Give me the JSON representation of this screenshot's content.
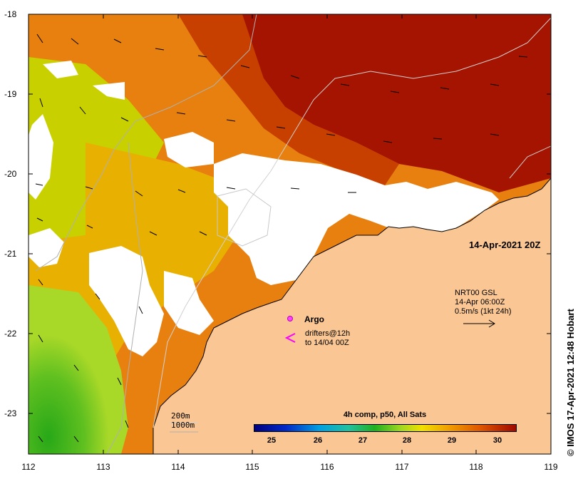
{
  "map": {
    "lat_ticks": [
      "-18",
      "-19",
      "-20",
      "-21",
      "-22",
      "-23"
    ],
    "lon_ticks": [
      "112",
      "113",
      "114",
      "115",
      "116",
      "117",
      "118",
      "119"
    ],
    "lat_range": [
      -23.5,
      -18
    ],
    "lon_range": [
      112,
      119
    ]
  },
  "date_label": "14-Apr-2021 20Z",
  "argo_label": "Argo",
  "drifters": {
    "line1": "drifters@12h",
    "line2": "to 14/04 00Z"
  },
  "vector_legend": {
    "line1": "NRT00 GSL",
    "line2": "14-Apr 06:00Z",
    "line3": "0.5m/s (1kt 24h)"
  },
  "depth_legend": {
    "line1": "200m",
    "line2": "1000m"
  },
  "colorbar": {
    "title": "4h comp, p50, All Sats",
    "ticks": [
      "25",
      "26",
      "27",
      "28",
      "29",
      "30"
    ],
    "range": [
      24.5,
      30.4
    ]
  },
  "credit": "© IMOS 17-Apr-2021 12:48 Hobart",
  "colors": {
    "land": "#f9c694",
    "cloud": "#ffffff",
    "warm_max": "#a01000",
    "warm": "#e06800",
    "mid": "#f0a000",
    "cool": "#a8d828",
    "cold": "#30b020"
  }
}
